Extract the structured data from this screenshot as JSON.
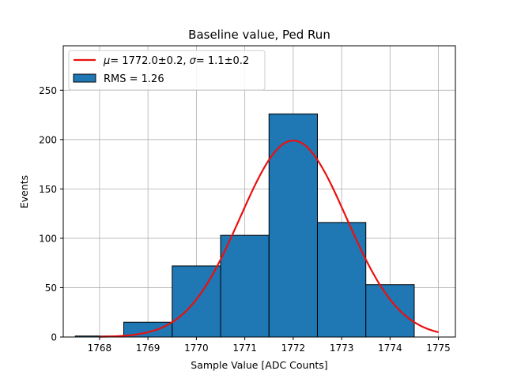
{
  "chart_data": {
    "type": "bar",
    "title": "Baseline value, Ped Run",
    "xlabel": "Sample Value [ADC Counts]",
    "ylabel": "Events",
    "xlim": [
      1767.25,
      1775.35
    ],
    "ylim": [
      0,
      295
    ],
    "xticks": [
      1768,
      1769,
      1770,
      1771,
      1772,
      1773,
      1774,
      1775
    ],
    "yticks": [
      0,
      50,
      100,
      150,
      200,
      250
    ],
    "grid": true,
    "legend_position": "top-left",
    "bins": [
      {
        "left": 1767.5,
        "right": 1768.5,
        "value": 1
      },
      {
        "left": 1768.5,
        "right": 1769.5,
        "value": 15
      },
      {
        "left": 1769.5,
        "right": 1770.5,
        "value": 72
      },
      {
        "left": 1770.5,
        "right": 1771.5,
        "value": 103
      },
      {
        "left": 1771.5,
        "right": 1772.5,
        "value": 226
      },
      {
        "left": 1772.5,
        "right": 1773.5,
        "value": 116
      },
      {
        "left": 1773.5,
        "right": 1774.5,
        "value": 53
      }
    ],
    "fit": {
      "mu": 1772.0,
      "sigma": 1.1,
      "amplitude": 199,
      "x_range": [
        1768,
        1775
      ]
    },
    "legend": [
      {
        "label_text": "= 1772.0±0.2, ",
        "label_sym1": "μ",
        "label_sym2": "σ",
        "label_rest": "= 1.1±0.2",
        "kind": "line",
        "color": "#e8110f"
      },
      {
        "label": "RMS = 1.26",
        "kind": "patch",
        "color": "#1f77b4"
      }
    ],
    "colors": {
      "bar": "#1f77b4",
      "fit": "#e8110f",
      "grid": "#b0b0b0"
    }
  }
}
